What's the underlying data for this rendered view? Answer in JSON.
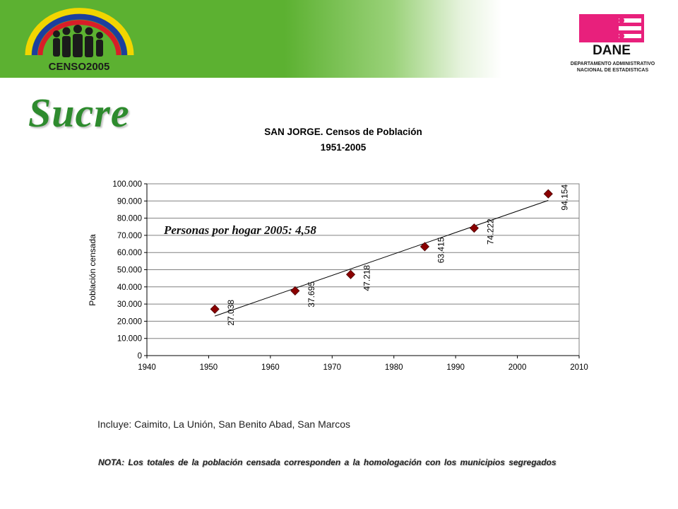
{
  "header": {
    "censo_logo_text": "CENSO2005",
    "dane_logo_text": "DANE",
    "dane_subtitle_line1": "DEPARTAMENTO ADMINISTRATIVO",
    "dane_subtitle_line2": "NACIONAL DE ESTADISTICAS"
  },
  "page_title": "Sucre",
  "annotation": "Personas por hogar 2005: 4,58",
  "includes": "Incluye: Caimito, La Unión, San Benito Abad, San Marcos",
  "note": "NOTA: Los totales de la población censada corresponden a la homologación con los municipios segregados",
  "colors": {
    "banner_green": "#5cb131",
    "title_green": "#2e8b2e",
    "marker": "#8b0000",
    "dane_magenta": "#e8207c"
  },
  "chart_data": {
    "type": "scatter",
    "title": "SAN JORGE. Censos de Población",
    "subtitle": "1951-2005",
    "xlabel": "",
    "ylabel": "Población censada",
    "xlim": [
      1940,
      2010
    ],
    "ylim": [
      0,
      100000
    ],
    "x_ticks": [
      "1940",
      "1950",
      "1960",
      "1970",
      "1980",
      "1990",
      "2000",
      "2010"
    ],
    "y_ticks": [
      "0",
      "10.000",
      "20.000",
      "30.000",
      "40.000",
      "50.000",
      "60.000",
      "70.000",
      "80.000",
      "90.000",
      "100.000"
    ],
    "series": [
      {
        "x": [
          1951,
          1964,
          1973,
          1985,
          1993,
          2005
        ],
        "y": [
          27038,
          37695,
          47218,
          63415,
          74222,
          94154
        ],
        "labels": [
          "27.038",
          "37.695",
          "47.218",
          "63.415",
          "74.222",
          "94.154"
        ]
      }
    ],
    "trendline": {
      "type": "linear"
    },
    "grid": true
  }
}
